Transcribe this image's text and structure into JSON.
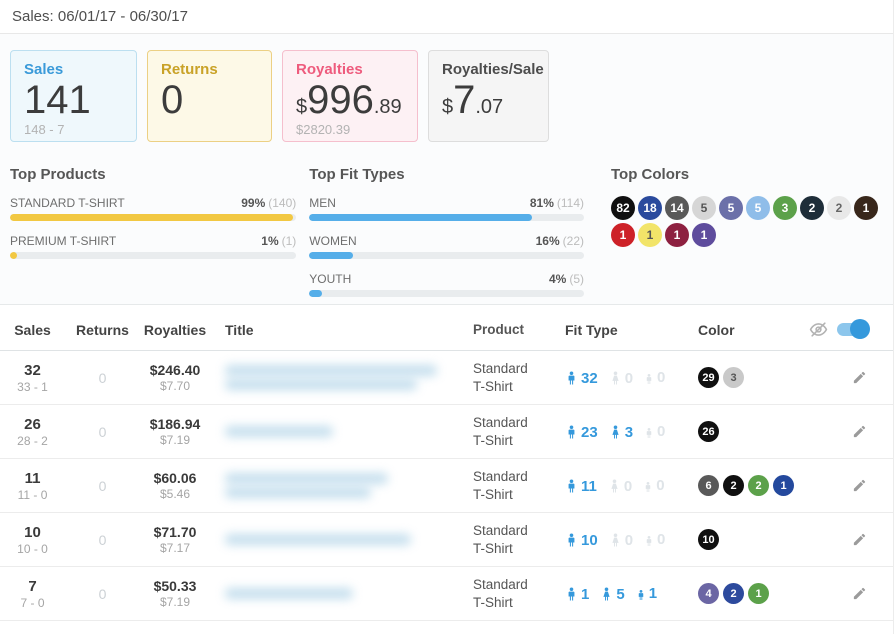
{
  "page": {
    "title": "Sales: 06/01/17 - 06/30/17"
  },
  "cards": [
    {
      "label": "Sales",
      "prefix": "",
      "big": "141",
      "suffix": "",
      "sub": "148 - 7",
      "accent": "#3a9ad9",
      "bg": "#eff8fc",
      "border": "#bcdff0"
    },
    {
      "label": "Returns",
      "prefix": "",
      "big": "0",
      "suffix": "",
      "sub": "",
      "accent": "#c9a227",
      "bg": "#fdf9e7",
      "border": "#ecd084"
    },
    {
      "label": "Royalties",
      "prefix": "$",
      "big": "996",
      "suffix": ".89",
      "sub": "$2820.39",
      "accent": "#ee5b7d",
      "bg": "#fdf1f4",
      "border": "#f5bfcd"
    },
    {
      "label": "Royalties/Sale",
      "prefix": "$",
      "big": "7",
      "suffix": ".07",
      "sub": "",
      "accent": "#4d4d4d",
      "bg": "#f5f5f5",
      "border": "#dddddd"
    }
  ],
  "top_products": {
    "title": "Top Products",
    "bar_color": "#f2c842",
    "items": [
      {
        "label": "STANDARD T-SHIRT",
        "percent": "99%",
        "count": "(140)",
        "width": "99%"
      },
      {
        "label": "PREMIUM T-SHIRT",
        "percent": "1%",
        "count": "(1)",
        "width": "2.5%"
      }
    ]
  },
  "top_fit_types": {
    "title": "Top Fit Types",
    "bar_color": "#55aee9",
    "items": [
      {
        "label": "MEN",
        "percent": "81%",
        "count": "(114)",
        "width": "81%"
      },
      {
        "label": "WOMEN",
        "percent": "16%",
        "count": "(22)",
        "width": "16%"
      },
      {
        "label": "YOUTH",
        "percent": "4%",
        "count": "(5)",
        "width": "4.5%"
      }
    ]
  },
  "top_colors": {
    "title": "Top Colors",
    "chips": [
      {
        "count": "82",
        "bg": "#101010",
        "fg": "#ffffff"
      },
      {
        "count": "18",
        "bg": "#2a4a9d",
        "fg": "#ffffff"
      },
      {
        "count": "14",
        "bg": "#595959",
        "fg": "#ffffff"
      },
      {
        "count": "5",
        "bg": "#d6d6d6",
        "fg": "#555555"
      },
      {
        "count": "5",
        "bg": "#6b70a9",
        "fg": "#ffffff"
      },
      {
        "count": "5",
        "bg": "#8fbde9",
        "fg": "#ffffff"
      },
      {
        "count": "3",
        "bg": "#5ca14a",
        "fg": "#ffffff"
      },
      {
        "count": "2",
        "bg": "#1e2d39",
        "fg": "#ffffff"
      },
      {
        "count": "2",
        "bg": "#e8e8e8",
        "fg": "#666666"
      },
      {
        "count": "1",
        "bg": "#38271b",
        "fg": "#ffffff"
      },
      {
        "count": "1",
        "bg": "#cd2128",
        "fg": "#ffffff"
      },
      {
        "count": "1",
        "bg": "#f2e469",
        "fg": "#555555"
      },
      {
        "count": "1",
        "bg": "#8d2040",
        "fg": "#ffffff"
      },
      {
        "count": "1",
        "bg": "#5e4c9d",
        "fg": "#ffffff"
      }
    ]
  },
  "table": {
    "headers": {
      "sales": "Sales",
      "returns": "Returns",
      "royalties": "Royalties",
      "title": "Title",
      "product": "Product",
      "fit_type": "Fit Type",
      "color": "Color"
    },
    "rows": [
      {
        "sales": "32",
        "sales_sub": "33 - 1",
        "returns": "0",
        "royalties": "$246.40",
        "royalties_sub": "$7.70",
        "product": "Standard T-Shirt",
        "fit": [
          {
            "type": "men",
            "count": "32",
            "color": "#3599dc"
          },
          {
            "type": "women",
            "count": "0",
            "color": "#dfe4e8"
          },
          {
            "type": "youth",
            "count": "0",
            "color": "#dfe4e8"
          }
        ],
        "colors": [
          {
            "count": "29",
            "bg": "#101010",
            "fg": "#ffffff"
          },
          {
            "count": "3",
            "bg": "#c9c9c9",
            "fg": "#555555"
          }
        ]
      },
      {
        "sales": "26",
        "sales_sub": "28 - 2",
        "returns": "0",
        "royalties": "$186.94",
        "royalties_sub": "$7.19",
        "product": "Standard T-Shirt",
        "fit": [
          {
            "type": "men",
            "count": "23",
            "color": "#3599dc"
          },
          {
            "type": "women",
            "count": "3",
            "color": "#3599dc"
          },
          {
            "type": "youth",
            "count": "0",
            "color": "#dfe4e8"
          }
        ],
        "colors": [
          {
            "count": "26",
            "bg": "#101010",
            "fg": "#ffffff"
          }
        ]
      },
      {
        "sales": "11",
        "sales_sub": "11 - 0",
        "returns": "0",
        "royalties": "$60.06",
        "royalties_sub": "$5.46",
        "product": "Standard T-Shirt",
        "fit": [
          {
            "type": "men",
            "count": "11",
            "color": "#3599dc"
          },
          {
            "type": "women",
            "count": "0",
            "color": "#dfe4e8"
          },
          {
            "type": "youth",
            "count": "0",
            "color": "#dfe4e8"
          }
        ],
        "colors": [
          {
            "count": "6",
            "bg": "#595959",
            "fg": "#ffffff"
          },
          {
            "count": "2",
            "bg": "#101010",
            "fg": "#ffffff"
          },
          {
            "count": "2",
            "bg": "#5ca14a",
            "fg": "#ffffff"
          },
          {
            "count": "1",
            "bg": "#24499d",
            "fg": "#ffffff"
          }
        ]
      },
      {
        "sales": "10",
        "sales_sub": "10 - 0",
        "returns": "0",
        "royalties": "$71.70",
        "royalties_sub": "$7.17",
        "product": "Standard T-Shirt",
        "fit": [
          {
            "type": "men",
            "count": "10",
            "color": "#3599dc"
          },
          {
            "type": "women",
            "count": "0",
            "color": "#dfe4e8"
          },
          {
            "type": "youth",
            "count": "0",
            "color": "#dfe4e8"
          }
        ],
        "colors": [
          {
            "count": "10",
            "bg": "#101010",
            "fg": "#ffffff"
          }
        ]
      },
      {
        "sales": "7",
        "sales_sub": "7 - 0",
        "returns": "0",
        "royalties": "$50.33",
        "royalties_sub": "$7.19",
        "product": "Standard T-Shirt",
        "fit": [
          {
            "type": "men",
            "count": "1",
            "color": "#3599dc"
          },
          {
            "type": "women",
            "count": "5",
            "color": "#3599dc"
          },
          {
            "type": "youth",
            "count": "1",
            "color": "#3599dc"
          }
        ],
        "colors": [
          {
            "count": "4",
            "bg": "#6b66a4",
            "fg": "#ffffff"
          },
          {
            "count": "2",
            "bg": "#2d4a9d",
            "fg": "#ffffff"
          },
          {
            "count": "1",
            "bg": "#5ca14a",
            "fg": "#ffffff"
          }
        ]
      }
    ]
  }
}
